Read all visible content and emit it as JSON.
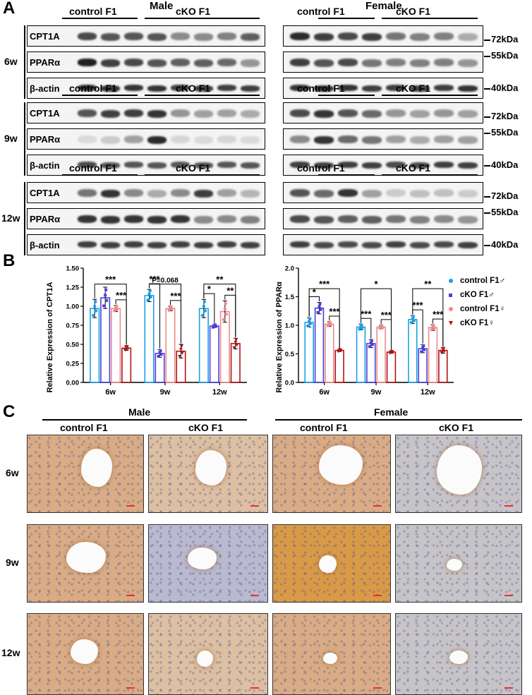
{
  "panel_a": {
    "letter": "A",
    "male_label": "Male",
    "female_label": "Female",
    "groups": [
      "control F1",
      "cKO F1"
    ],
    "timepoints": [
      "6w",
      "9w",
      "12w"
    ],
    "proteins": [
      "CPT1A",
      "PPARα",
      "β-actin"
    ],
    "marker_labels": [
      "72kDa",
      "55kDa",
      "40kDa"
    ]
  },
  "panel_b": {
    "letter": "B",
    "legend": [
      {
        "label": "control F1♂",
        "color": "#1aa0e6",
        "marker": "circle"
      },
      {
        "label": "cKO F1♂",
        "color": "#4b3fd9",
        "marker": "square"
      },
      {
        "label": "control F1♀",
        "color": "#f08a8a",
        "marker": "circle"
      },
      {
        "label": "cKO F1♀",
        "color": "#b01414",
        "marker": "triangle-down"
      }
    ]
  },
  "chart_data": [
    {
      "type": "bar",
      "ylabel": "Relative Expression of CPT1A",
      "categories": [
        "6w",
        "9w",
        "12w"
      ],
      "ylim": [
        0,
        1.5
      ],
      "yticks": [
        "0.00",
        "0.25",
        "0.50",
        "0.75",
        "1.00",
        "1.25",
        "1.50"
      ],
      "series": [
        {
          "name": "control F1♂",
          "values": [
            0.97,
            1.14,
            0.97
          ],
          "errors": [
            0.12,
            0.08,
            0.12
          ]
        },
        {
          "name": "cKO F1♂",
          "values": [
            1.11,
            0.38,
            0.74
          ],
          "errors": [
            0.14,
            0.05,
            0.02
          ]
        },
        {
          "name": "control F1♀",
          "values": [
            0.97,
            0.97,
            0.93
          ],
          "errors": [
            0.04,
            0.03,
            0.14
          ]
        },
        {
          "name": "cKO F1♀",
          "values": [
            0.45,
            0.41,
            0.51
          ],
          "errors": [
            0.03,
            0.09,
            0.07
          ]
        }
      ],
      "annotations": [
        {
          "text": "***",
          "between": [
            "6w control F1♂",
            "6w cKO F1♀"
          ]
        },
        {
          "text": "***",
          "between": [
            "6w control F1♀",
            "6w cKO F1♀"
          ]
        },
        {
          "text": "P=0.068",
          "between": [
            "9w control F1♂",
            "9w cKO F1♀"
          ]
        },
        {
          "text": "***",
          "between": [
            "9w control F1♂",
            "9w cKO F1♂"
          ]
        },
        {
          "text": "***",
          "between": [
            "9w control F1♀",
            "9w cKO F1♀"
          ]
        },
        {
          "text": "**",
          "between": [
            "12w control F1♂",
            "12w cKO F1♀"
          ]
        },
        {
          "text": "*",
          "between": [
            "12w control F1♂",
            "12w cKO F1♂"
          ]
        },
        {
          "text": "**",
          "between": [
            "12w control F1♀",
            "12w cKO F1♀"
          ]
        }
      ]
    },
    {
      "type": "bar",
      "ylabel": "Relative Expression of PPARα",
      "categories": [
        "6w",
        "9w",
        "12w"
      ],
      "ylim": [
        0,
        2.0
      ],
      "yticks": [
        "0.0",
        "0.5",
        "1.0",
        "1.5",
        "2.0"
      ],
      "series": [
        {
          "name": "control F1♂",
          "values": [
            1.05,
            0.97,
            1.1
          ],
          "errors": [
            0.08,
            0.05,
            0.07
          ]
        },
        {
          "name": "cKO F1♂",
          "values": [
            1.3,
            0.68,
            0.59
          ],
          "errors": [
            0.1,
            0.07,
            0.07
          ]
        },
        {
          "name": "control F1♀",
          "values": [
            1.02,
            0.97,
            0.96
          ],
          "errors": [
            0.04,
            0.03,
            0.05
          ]
        },
        {
          "name": "cKO F1♀",
          "values": [
            0.56,
            0.53,
            0.56
          ],
          "errors": [
            0.02,
            0.02,
            0.05
          ]
        }
      ],
      "annotations": [
        {
          "text": "***",
          "between": [
            "6w control F1♂",
            "6w cKO F1♀"
          ]
        },
        {
          "text": "*",
          "between": [
            "6w control F1♂",
            "6w cKO F1♂"
          ]
        },
        {
          "text": "***",
          "between": [
            "6w control F1♀",
            "6w cKO F1♀"
          ]
        },
        {
          "text": "*",
          "between": [
            "9w control F1♂",
            "9w cKO F1♀"
          ]
        },
        {
          "text": "***",
          "between": [
            "9w control F1♂",
            "9w cKO F1♂"
          ]
        },
        {
          "text": "***",
          "between": [
            "9w control F1♀",
            "9w cKO F1♀"
          ]
        },
        {
          "text": "**",
          "between": [
            "12w control F1♂",
            "12w cKO F1♀"
          ]
        },
        {
          "text": "***",
          "between": [
            "12w control F1♂",
            "12w cKO F1♂"
          ]
        },
        {
          "text": "***",
          "between": [
            "12w control F1♀",
            "12w cKO F1♀"
          ]
        }
      ]
    }
  ],
  "panel_c": {
    "letter": "C",
    "male_label": "Male",
    "female_label": "Female",
    "groups": [
      "control F1",
      "cKO F1"
    ],
    "timepoints": [
      "6w",
      "9w",
      "12w"
    ],
    "stain_colors": {
      "control_male": "#d9ac85",
      "cko_male_6w": "#ddbfa2",
      "cko_male_9w": "#b9b9cf",
      "control_female_9w": "#d99a48",
      "cko_female": "#c7c4c8"
    }
  }
}
